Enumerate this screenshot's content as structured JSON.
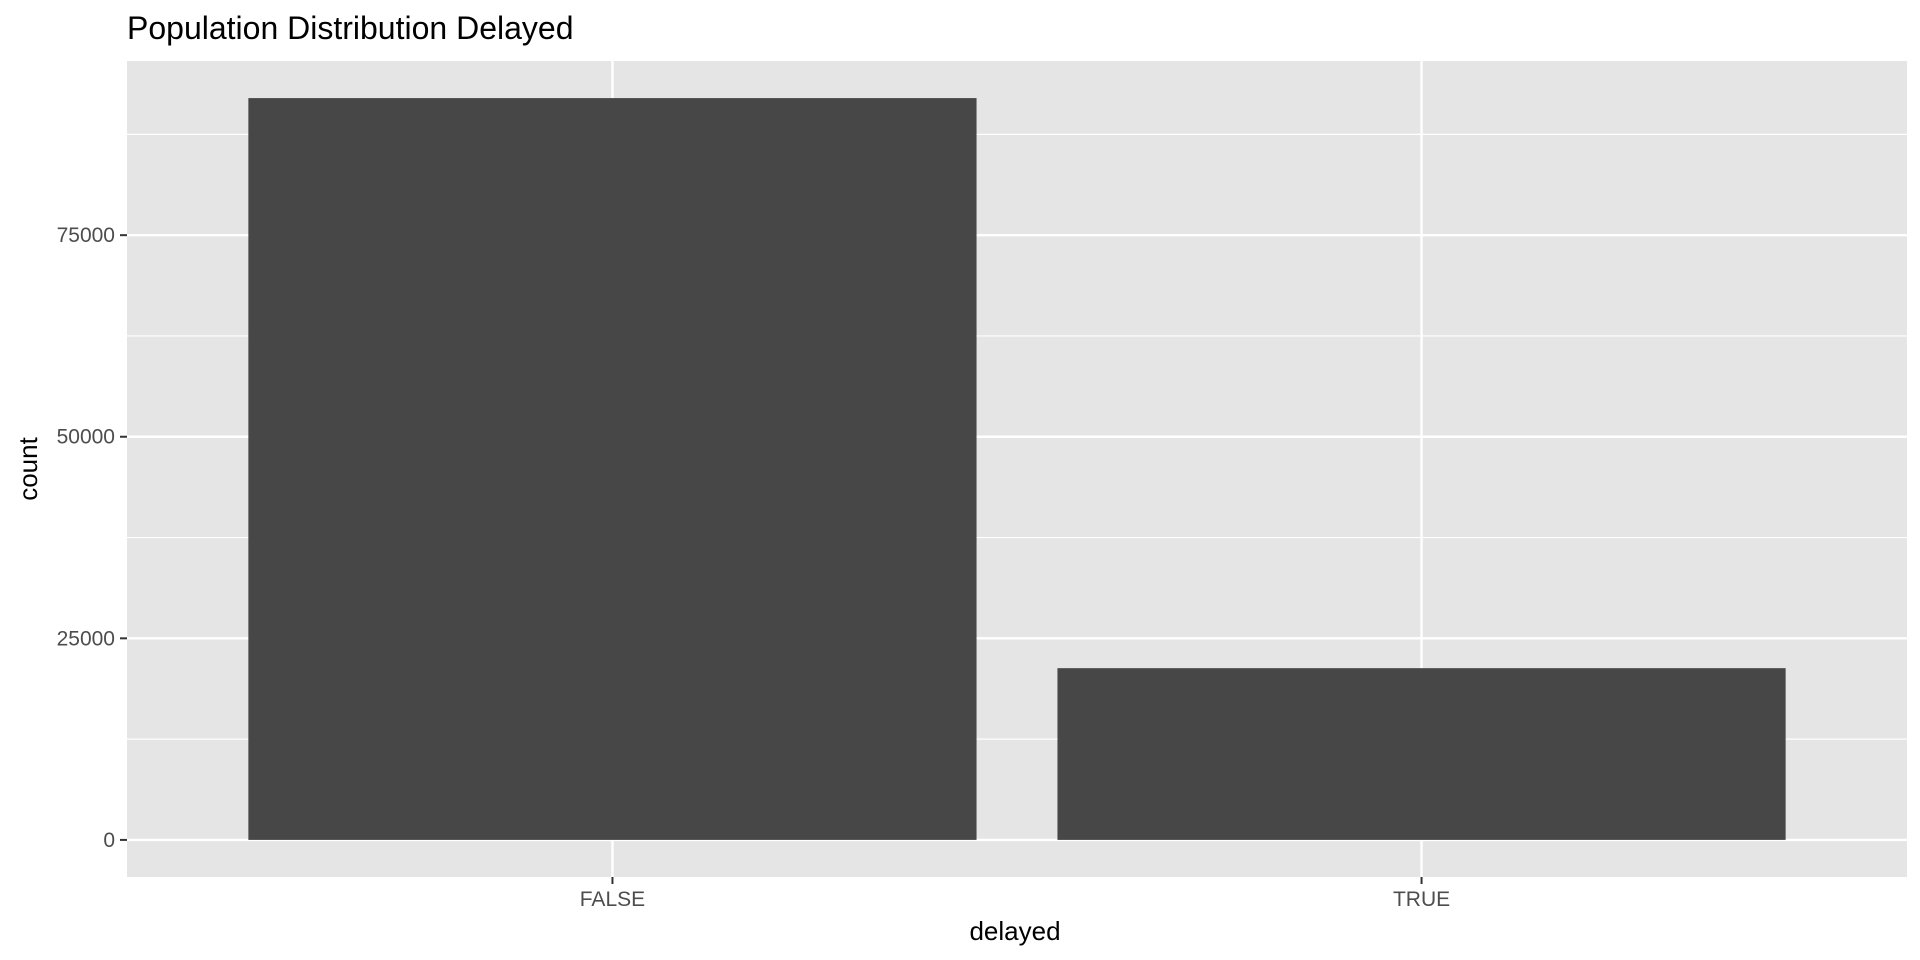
{
  "chart_data": {
    "type": "bar",
    "title": "Population Distribution Delayed",
    "xlabel": "delayed",
    "ylabel": "count",
    "categories": [
      "FALSE",
      "TRUE"
    ],
    "values": [
      92000,
      21300
    ],
    "ylim": [
      -4600,
      96600
    ],
    "yticks": [
      0,
      25000,
      50000,
      75000
    ],
    "grid": true,
    "legend": "none",
    "colors": {
      "bar": "#474747",
      "panel": "#e5e5e5",
      "grid": "#ffffff",
      "tick": "#333333"
    }
  }
}
